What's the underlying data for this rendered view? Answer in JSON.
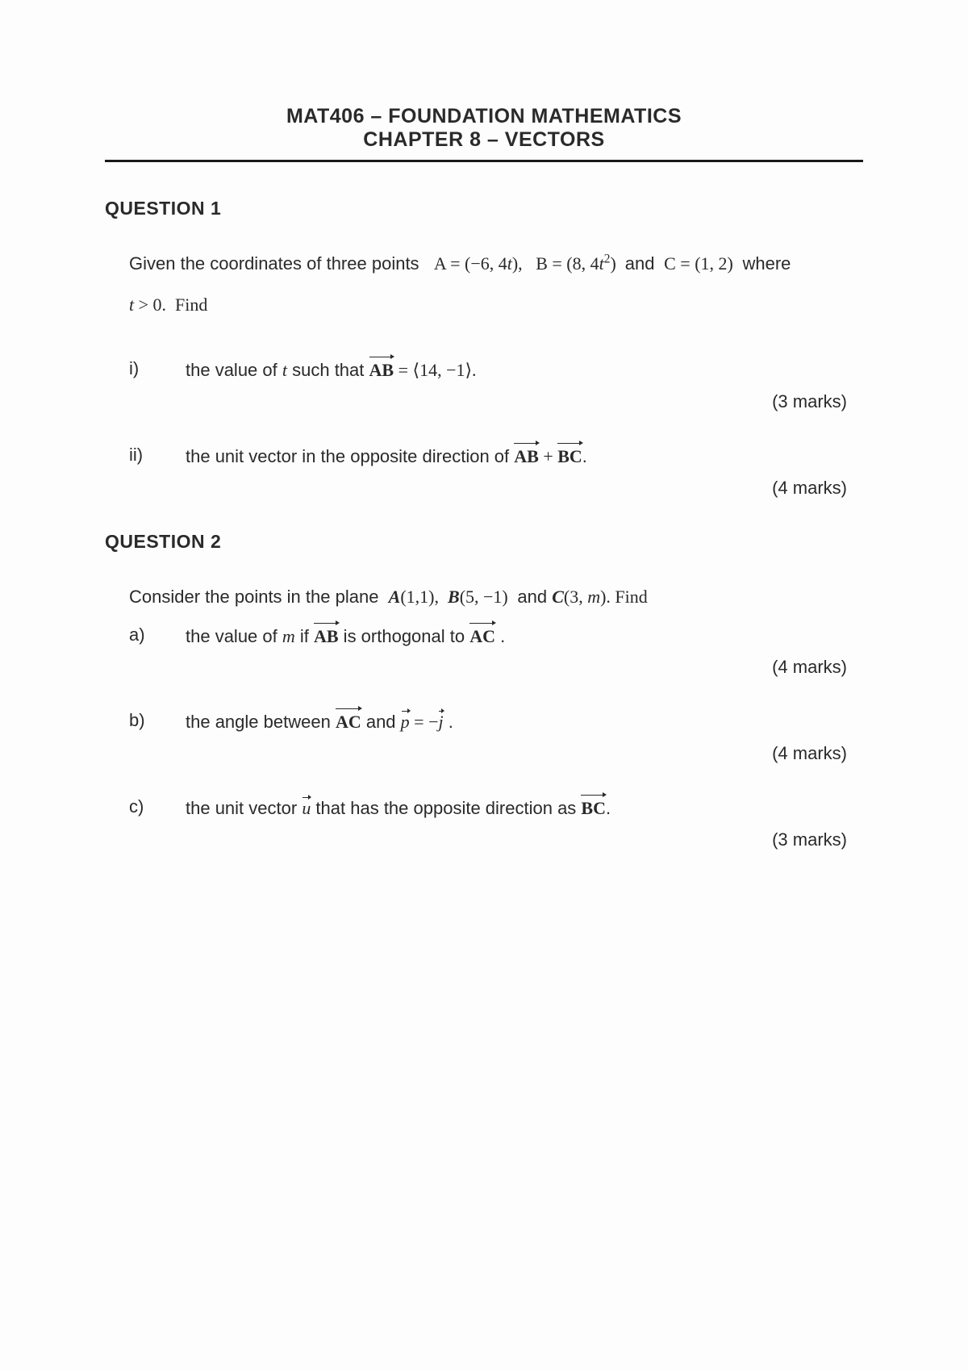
{
  "header": {
    "course": "MAT406 – FOUNDATION MATHEMATICS",
    "chapter": "CHAPTER 8 – VECTORS"
  },
  "q1": {
    "title": "QUESTION 1",
    "intro_pre": "Given the coordinates of three points  ",
    "A_eq": "A = (−6, 4",
    "A_var": "t",
    "A_close": "),  ",
    "B_eq": "B = (8, 4",
    "B_var": "t",
    "B_sup": "2",
    "B_close": ") ",
    "and": "and",
    "C_eq": " C = (1, 2) ",
    "where": "where",
    "cond_var": "t",
    "cond_rest": " > 0.  Find",
    "parts": {
      "i": {
        "label": "i)",
        "pre": "the value of ",
        "var": "t",
        "mid": "  such that  ",
        "vec": "AB",
        "eq": " = ⟨14, −1⟩.",
        "marks": "(3 marks)"
      },
      "ii": {
        "label": "ii)",
        "pre": "the unit vector in the opposite direction of  ",
        "vec1": "AB",
        "plus": " + ",
        "vec2": "BC",
        "end": ".",
        "marks": "(4 marks)"
      }
    }
  },
  "q2": {
    "title": "QUESTION 2",
    "intro_pre": "Consider the points in the plane  ",
    "A": "A",
    "A_coords": "(1,1),  ",
    "B": "B",
    "B_coords": "(5, −1) ",
    "and": " and ",
    "C": "C",
    "C_coords": "(3, ",
    "C_var": "m",
    "C_end": "). Find",
    "parts": {
      "a": {
        "label": "a)",
        "pre": "the value of ",
        "var": "m",
        "mid": " if ",
        "vec1": "AB",
        "orth": " is orthogonal to ",
        "vec2": "AC",
        "end": " .",
        "marks": "(4 marks)"
      },
      "b": {
        "label": "b)",
        "pre": "the angle between  ",
        "vec1": "AC",
        "and": "  and  ",
        "p": "p",
        "eq": " = −",
        "j": "j",
        "end": " .",
        "marks": "(4 marks)"
      },
      "c": {
        "label": "c)",
        "pre": "the unit vector ",
        "u": "u",
        "mid": " that has the opposite direction as  ",
        "vec1": "BC",
        "end": ".",
        "marks": "(3 marks)"
      }
    }
  }
}
